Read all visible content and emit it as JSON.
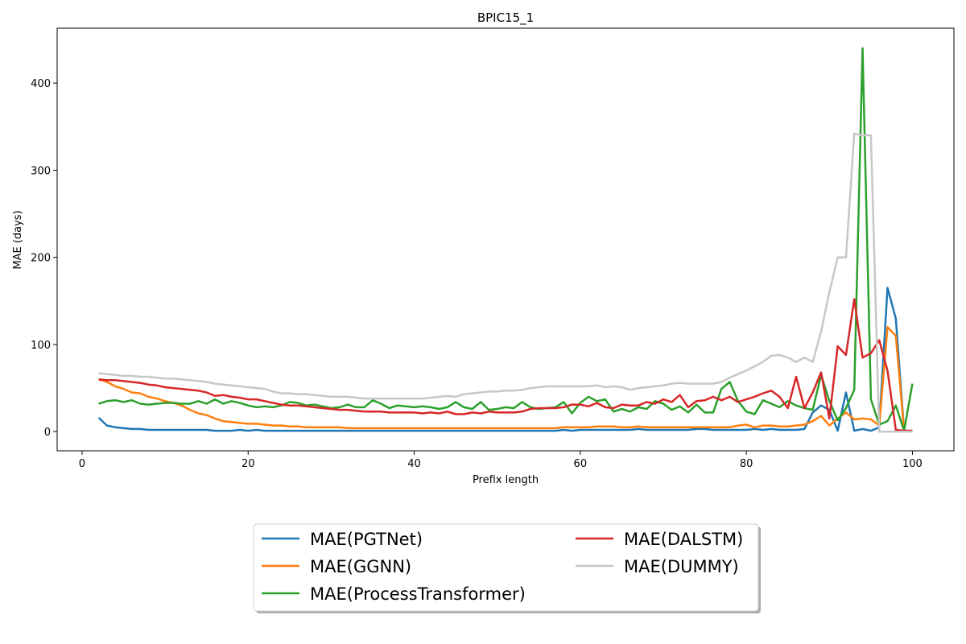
{
  "chart_data": {
    "type": "line",
    "title": "BPIC15_1",
    "xlabel": "Prefix length",
    "ylabel": "MAE (days)",
    "xlim": [
      -3,
      105
    ],
    "ylim": [
      -22,
      463
    ],
    "xticks": [
      0,
      20,
      40,
      60,
      80,
      100
    ],
    "yticks": [
      0,
      100,
      200,
      300,
      400
    ],
    "grid": false,
    "legend_position": "bottom-center",
    "x": [
      2,
      3,
      4,
      5,
      6,
      7,
      8,
      9,
      10,
      11,
      12,
      13,
      14,
      15,
      16,
      17,
      18,
      19,
      20,
      21,
      22,
      23,
      24,
      25,
      26,
      27,
      28,
      29,
      30,
      31,
      32,
      33,
      34,
      35,
      36,
      37,
      38,
      39,
      40,
      41,
      42,
      43,
      44,
      45,
      46,
      47,
      48,
      49,
      50,
      51,
      52,
      53,
      54,
      55,
      56,
      57,
      58,
      59,
      60,
      61,
      62,
      63,
      64,
      65,
      66,
      67,
      68,
      69,
      70,
      71,
      72,
      73,
      74,
      75,
      76,
      77,
      78,
      79,
      80,
      81,
      82,
      83,
      84,
      85,
      86,
      87,
      88,
      89,
      90,
      91,
      92,
      93,
      94,
      95,
      96,
      97,
      98,
      99,
      100
    ],
    "series": [
      {
        "name": "MAE(PGTNet)",
        "color": "#1f77b4",
        "values": [
          16,
          7,
          5,
          4,
          3,
          3,
          2,
          2,
          2,
          2,
          2,
          2,
          2,
          2,
          1,
          1,
          1,
          2,
          1,
          2,
          1,
          1,
          1,
          1,
          1,
          1,
          1,
          1,
          1,
          1,
          1,
          1,
          1,
          1,
          1,
          1,
          1,
          1,
          1,
          1,
          1,
          1,
          1,
          1,
          1,
          1,
          1,
          1,
          1,
          1,
          1,
          1,
          1,
          1,
          1,
          1,
          2,
          1,
          2,
          2,
          2,
          2,
          2,
          2,
          2,
          3,
          2,
          2,
          2,
          2,
          2,
          2,
          3,
          3,
          2,
          2,
          2,
          2,
          2,
          3,
          2,
          3,
          2,
          2,
          2,
          3,
          22,
          30,
          25,
          1,
          45,
          1,
          3,
          1,
          5,
          165,
          130,
          1,
          1
        ]
      },
      {
        "name": "MAE(GGNN)",
        "color": "#ff7f0e",
        "values": [
          60,
          57,
          52,
          49,
          45,
          44,
          40,
          38,
          35,
          33,
          30,
          25,
          21,
          19,
          15,
          12,
          11,
          10,
          9,
          9,
          8,
          7,
          7,
          6,
          6,
          5,
          5,
          5,
          5,
          5,
          4,
          4,
          4,
          4,
          4,
          4,
          4,
          4,
          4,
          4,
          4,
          4,
          4,
          4,
          4,
          4,
          4,
          4,
          4,
          4,
          4,
          4,
          4,
          4,
          4,
          4,
          5,
          5,
          5,
          5,
          6,
          6,
          6,
          5,
          5,
          6,
          5,
          5,
          5,
          5,
          5,
          5,
          5,
          5,
          5,
          5,
          5,
          7,
          8,
          5,
          7,
          7,
          6,
          6,
          7,
          8,
          12,
          18,
          7,
          15,
          22,
          14,
          15,
          14,
          7,
          120,
          110,
          1,
          1
        ]
      },
      {
        "name": "MAE(ProcessTransformer)",
        "color": "#2ca02c",
        "values": [
          32,
          35,
          36,
          34,
          36,
          32,
          31,
          32,
          33,
          33,
          32,
          32,
          35,
          32,
          37,
          32,
          35,
          33,
          30,
          28,
          29,
          28,
          30,
          34,
          33,
          30,
          31,
          29,
          27,
          28,
          31,
          28,
          28,
          36,
          32,
          27,
          30,
          29,
          28,
          29,
          28,
          26,
          28,
          34,
          28,
          26,
          34,
          25,
          26,
          28,
          27,
          34,
          28,
          26,
          27,
          28,
          34,
          21,
          33,
          40,
          35,
          37,
          23,
          26,
          23,
          28,
          26,
          35,
          32,
          25,
          29,
          22,
          31,
          22,
          22,
          49,
          57,
          35,
          23,
          20,
          36,
          32,
          28,
          35,
          30,
          27,
          25,
          65,
          35,
          13,
          27,
          48,
          440,
          37,
          8,
          12,
          30,
          1,
          55
        ]
      },
      {
        "name": "MAE(DALSTM)",
        "color": "#d62728",
        "values": [
          60,
          59,
          59,
          58,
          57,
          56,
          54,
          53,
          51,
          50,
          49,
          48,
          47,
          45,
          41,
          42,
          40,
          39,
          37,
          37,
          35,
          33,
          31,
          30,
          30,
          29,
          28,
          27,
          26,
          25,
          25,
          24,
          23,
          23,
          23,
          22,
          22,
          22,
          22,
          21,
          22,
          21,
          23,
          20,
          20,
          22,
          21,
          23,
          22,
          22,
          22,
          23,
          26,
          27,
          27,
          27,
          28,
          31,
          31,
          29,
          33,
          28,
          27,
          31,
          30,
          30,
          34,
          32,
          37,
          34,
          42,
          28,
          35,
          36,
          40,
          36,
          40,
          34,
          37,
          40,
          44,
          47,
          40,
          27,
          63,
          27,
          45,
          68,
          15,
          98,
          88,
          152,
          85,
          90,
          105,
          70,
          2,
          1,
          1
        ]
      },
      {
        "name": "MAE(DUMMY)",
        "color": "#c7c7c7",
        "values": [
          67,
          66,
          65,
          64,
          64,
          63,
          63,
          62,
          61,
          61,
          60,
          59,
          58,
          57,
          55,
          54,
          53,
          52,
          51,
          50,
          49,
          46,
          44,
          44,
          43,
          43,
          42,
          41,
          40,
          40,
          40,
          39,
          38,
          38,
          38,
          38,
          38,
          38,
          38,
          38,
          39,
          40,
          41,
          40,
          43,
          44,
          45,
          46,
          46,
          47,
          47,
          48,
          50,
          51,
          52,
          52,
          52,
          52,
          52,
          52,
          53,
          51,
          52,
          51,
          48,
          50,
          51,
          52,
          53,
          55,
          56,
          55,
          55,
          55,
          55,
          57,
          62,
          66,
          70,
          75,
          80,
          87,
          88,
          85,
          80,
          85,
          80,
          115,
          160,
          200,
          200,
          342,
          340,
          340,
          0,
          0,
          0,
          0,
          0
        ]
      }
    ]
  }
}
